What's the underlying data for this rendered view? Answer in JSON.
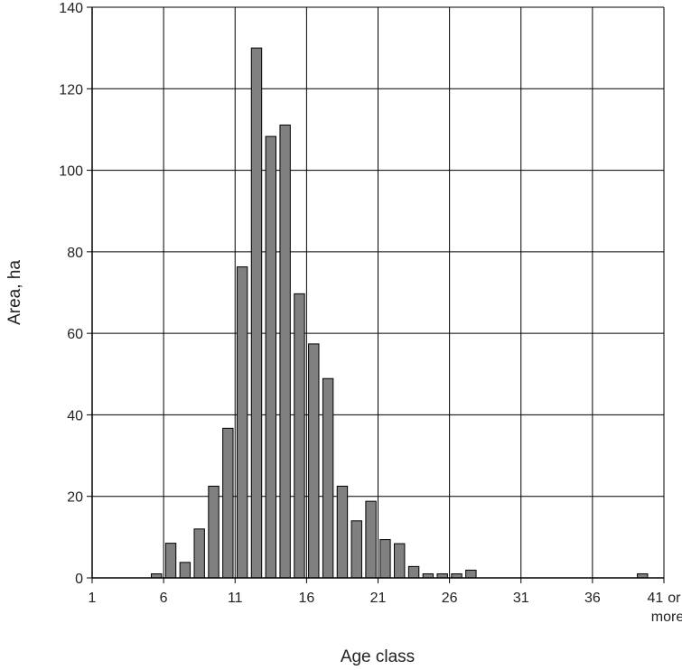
{
  "chart_data": {
    "type": "bar",
    "xlabel": "Age class",
    "ylabel": "Area, ha",
    "ylim": [
      0,
      140
    ],
    "yticks": [
      0,
      20,
      40,
      60,
      80,
      100,
      120,
      140
    ],
    "xlim": [
      1,
      41
    ],
    "xticks": [
      {
        "value": 1,
        "label": "1"
      },
      {
        "value": 6,
        "label": "6"
      },
      {
        "value": 11,
        "label": "11"
      },
      {
        "value": 16,
        "label": "16"
      },
      {
        "value": 21,
        "label": "21"
      },
      {
        "value": 26,
        "label": "26"
      },
      {
        "value": 31,
        "label": "31"
      },
      {
        "value": 36,
        "label": "36"
      },
      {
        "value": 41,
        "label": "41 or more"
      }
    ],
    "grid": true,
    "bar_color": "#808080",
    "bar_edge_color": "#000000",
    "categories": [
      1,
      2,
      3,
      4,
      5,
      6,
      7,
      8,
      9,
      10,
      11,
      12,
      13,
      14,
      15,
      16,
      17,
      18,
      19,
      20,
      21,
      22,
      23,
      24,
      25,
      26,
      27,
      28,
      29,
      30,
      31,
      32,
      33,
      34,
      35,
      36,
      37,
      38,
      39,
      40
    ],
    "values": [
      0,
      0,
      0,
      0,
      1,
      8.5,
      3.8,
      12,
      22.5,
      36.7,
      76.3,
      130,
      108.3,
      111.1,
      69.7,
      57.4,
      48.9,
      22.5,
      14,
      18.8,
      9.4,
      8.4,
      2.8,
      1,
      1,
      1,
      1.9,
      0,
      0,
      0,
      0,
      0,
      0,
      0,
      0,
      0,
      0,
      0,
      1,
      0
    ]
  }
}
